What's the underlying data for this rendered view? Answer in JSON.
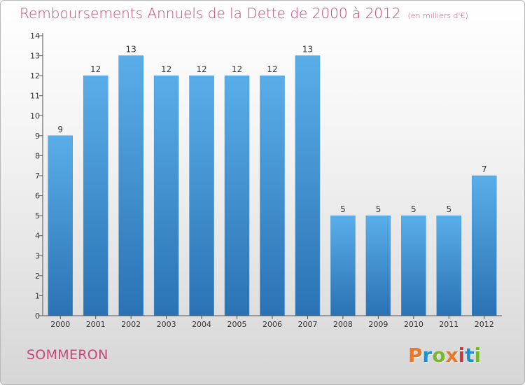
{
  "title": "Remboursements Annuels de la Dette de 2000 à 2012",
  "unit": "(en milliers d'€)",
  "commune": "SOMMERON",
  "logo": {
    "text": "Proxiti",
    "colors": [
      "#e8762b",
      "#1f8fd0",
      "#7ab52f",
      "#e8762b",
      "#d4333c",
      "#1f8fd0",
      "#7ab52f"
    ]
  },
  "colors": {
    "bar": "#3f95d8",
    "bar_light": "#5aaee8",
    "bar_dark": "#2a72b4",
    "title": "#c8467a",
    "text": "#333333"
  },
  "chart_data": {
    "type": "bar",
    "categories": [
      "2000",
      "2001",
      "2002",
      "2003",
      "2004",
      "2005",
      "2006",
      "2007",
      "2008",
      "2009",
      "2010",
      "2011",
      "2012"
    ],
    "values": [
      9,
      12,
      13,
      12,
      12,
      12,
      12,
      13,
      5,
      5,
      5,
      5,
      7
    ],
    "data_labels": [
      "9",
      "12",
      "13",
      "12",
      "12",
      "12",
      "12",
      "13",
      "5",
      "5",
      "5",
      "5",
      "7"
    ],
    "yticks": [
      "0",
      "1",
      "2",
      "3",
      "4",
      "5",
      "6",
      "7",
      "8",
      "9",
      "10",
      "11",
      "12",
      "13",
      "14"
    ],
    "ylim": [
      0,
      14
    ],
    "grid": false,
    "legend": "none",
    "xlabel": "",
    "ylabel": ""
  }
}
